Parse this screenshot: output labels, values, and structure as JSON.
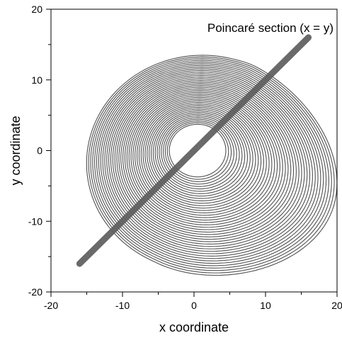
{
  "chart_data": {
    "type": "line",
    "title": "",
    "xlabel": "x coordinate",
    "ylabel": "y coordinate",
    "xlim": [
      -20,
      20
    ],
    "ylim": [
      -20,
      20
    ],
    "xticks": [
      -20,
      -10,
      0,
      10,
      20
    ],
    "yticks": [
      -20,
      -10,
      0,
      10,
      20
    ],
    "xtick_labels": [
      "-20",
      "-10",
      "0",
      "10",
      "20"
    ],
    "ytick_labels": [
      "-20",
      "-10",
      "0",
      "10",
      "20"
    ],
    "grid": false,
    "legend": "none",
    "annotation": {
      "text": "Poincaré section (x = y)",
      "placement": "top-right"
    },
    "series": [
      {
        "role": "section-line",
        "x": [
          -16,
          16
        ],
        "y": [
          -16,
          16
        ],
        "color": "#5e5e5e"
      },
      {
        "role": "attractor",
        "color": "#505050",
        "center": [
          0,
          0
        ],
        "x_range": [
          -15.8,
          17.2
        ],
        "y_range": [
          -16.2,
          12.8
        ],
        "hole_center": [
          0,
          0
        ],
        "hole_radius_approx": 3.7
      }
    ]
  }
}
